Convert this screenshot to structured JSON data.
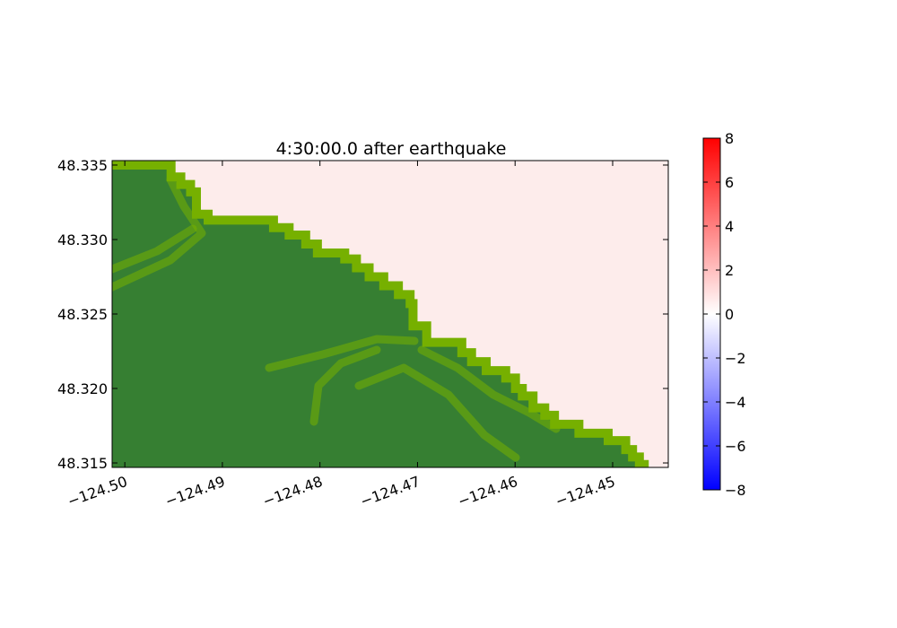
{
  "chart_data": {
    "type": "heatmap",
    "title": "4:30:00.0 after earthquake",
    "xlim": [
      -124.5013,
      -124.4443
    ],
    "ylim": [
      48.3147,
      48.3353
    ],
    "x_ticks": [
      {
        "value": -124.5,
        "label": "−124.50"
      },
      {
        "value": -124.49,
        "label": "−124.49"
      },
      {
        "value": -124.48,
        "label": "−124.48"
      },
      {
        "value": -124.47,
        "label": "−124.47"
      },
      {
        "value": -124.46,
        "label": "−124.46"
      },
      {
        "value": -124.45,
        "label": "−124.45"
      }
    ],
    "y_ticks": [
      {
        "value": 48.315,
        "label": "48.315"
      },
      {
        "value": 48.32,
        "label": "48.320"
      },
      {
        "value": 48.325,
        "label": "48.325"
      },
      {
        "value": 48.33,
        "label": "48.330"
      },
      {
        "value": 48.335,
        "label": "48.335"
      }
    ],
    "land_color": "#367f32",
    "shore_color": "#76b000",
    "water_color": "#fdeceb",
    "shoreline": [
      {
        "lon": -124.5013,
        "lat": 48.3353
      },
      {
        "lon": -124.4955,
        "lat": 48.3353
      },
      {
        "lon": -124.4948,
        "lat": 48.3345
      },
      {
        "lon": -124.4938,
        "lat": 48.334
      },
      {
        "lon": -124.4928,
        "lat": 48.3335
      },
      {
        "lon": -124.4922,
        "lat": 48.332
      },
      {
        "lon": -124.491,
        "lat": 48.3316
      },
      {
        "lon": -124.4855,
        "lat": 48.3316
      },
      {
        "lon": -124.4843,
        "lat": 48.3311
      },
      {
        "lon": -124.4827,
        "lat": 48.3306
      },
      {
        "lon": -124.481,
        "lat": 48.33
      },
      {
        "lon": -124.4798,
        "lat": 48.3294
      },
      {
        "lon": -124.477,
        "lat": 48.329
      },
      {
        "lon": -124.4758,
        "lat": 48.3284
      },
      {
        "lon": -124.4745,
        "lat": 48.3278
      },
      {
        "lon": -124.473,
        "lat": 48.3272
      },
      {
        "lon": -124.4715,
        "lat": 48.3266
      },
      {
        "lon": -124.4703,
        "lat": 48.326
      },
      {
        "lon": -124.47,
        "lat": 48.3245
      },
      {
        "lon": -124.4686,
        "lat": 48.3234
      },
      {
        "lon": -124.466,
        "lat": 48.3234
      },
      {
        "lon": -124.465,
        "lat": 48.3227
      },
      {
        "lon": -124.464,
        "lat": 48.3221
      },
      {
        "lon": -124.4625,
        "lat": 48.3215
      },
      {
        "lon": -124.4605,
        "lat": 48.321
      },
      {
        "lon": -124.4595,
        "lat": 48.3203
      },
      {
        "lon": -124.4588,
        "lat": 48.3198
      },
      {
        "lon": -124.4577,
        "lat": 48.319
      },
      {
        "lon": -124.4565,
        "lat": 48.3185
      },
      {
        "lon": -124.4555,
        "lat": 48.3179
      },
      {
        "lon": -124.453,
        "lat": 48.3173
      },
      {
        "lon": -124.45,
        "lat": 48.3168
      },
      {
        "lon": -124.4482,
        "lat": 48.3162
      },
      {
        "lon": -124.4475,
        "lat": 48.3157
      },
      {
        "lon": -124.4468,
        "lat": 48.3152
      },
      {
        "lon": -124.4463,
        "lat": 48.3147
      }
    ],
    "colorbar": {
      "vmin": -8,
      "vmax": 8,
      "colors": [
        "#0000ff",
        "#ffffff",
        "#ff0000"
      ],
      "ticks": [
        {
          "value": 8,
          "label": "8"
        },
        {
          "value": 6,
          "label": "6"
        },
        {
          "value": 4,
          "label": "4"
        },
        {
          "value": 2,
          "label": "2"
        },
        {
          "value": 0,
          "label": "0"
        },
        {
          "value": -2,
          "label": "−2"
        },
        {
          "value": -4,
          "label": "−4"
        },
        {
          "value": -6,
          "label": "−6"
        },
        {
          "value": -8,
          "label": "−8"
        }
      ]
    }
  }
}
